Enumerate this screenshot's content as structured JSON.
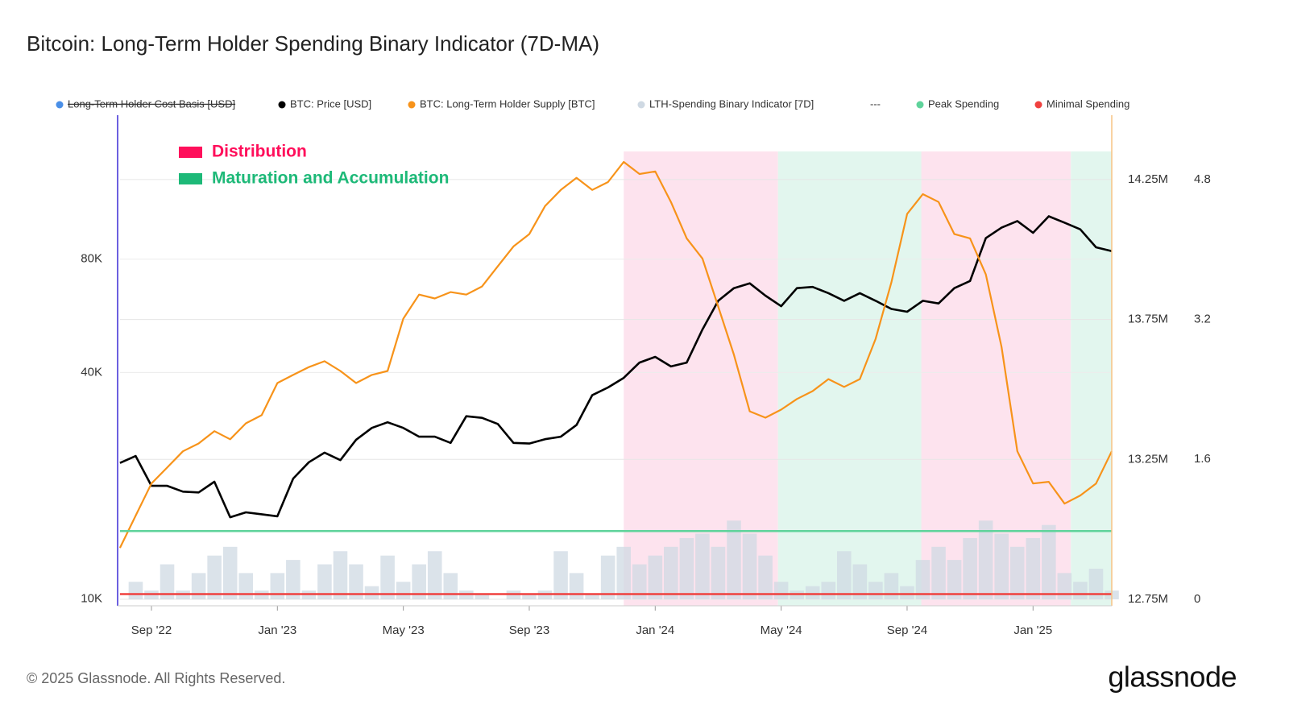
{
  "chart_data": {
    "type": "line",
    "title": "Bitcoin: Long-Term Holder Spending Binary Indicator (7D-MA)",
    "x": [
      0,
      0.5,
      1,
      1.5,
      2,
      2.5,
      3,
      3.5,
      4,
      4.5,
      5,
      5.5,
      6,
      6.5,
      7,
      7.5,
      8,
      8.5,
      9,
      9.5,
      10,
      10.5,
      11,
      11.5,
      12,
      12.5,
      13,
      13.5,
      14,
      14.5,
      15,
      15.5,
      16,
      16.5,
      17,
      17.5,
      18,
      18.5,
      19,
      19.5,
      20,
      20.5,
      21,
      21.5,
      22,
      22.5,
      23,
      23.5,
      24,
      24.5,
      25,
      25.5,
      26,
      26.5,
      27,
      27.5,
      28,
      28.5,
      29,
      29.5,
      30,
      30.5,
      31,
      31.5
    ],
    "xlim": [
      0,
      31.5
    ],
    "xticks": [
      {
        "value": 1,
        "label": "Sep '22"
      },
      {
        "value": 5,
        "label": "Jan '23"
      },
      {
        "value": 9,
        "label": "May '23"
      },
      {
        "value": 13,
        "label": "Sep '23"
      },
      {
        "value": 17,
        "label": "Jan '24"
      },
      {
        "value": 21,
        "label": "May '24"
      },
      {
        "value": 25,
        "label": "Sep '24"
      },
      {
        "value": 29,
        "label": "Jan '25"
      }
    ],
    "log_y": true,
    "ylim": [
      9600,
      193000
    ],
    "yticks": [
      {
        "value": 10000,
        "label": "10K"
      },
      {
        "value": 40000,
        "label": "40K"
      },
      {
        "value": 80000,
        "label": "80K"
      }
    ],
    "y2lim": [
      12727000,
      14480000
    ],
    "y2ticks": [
      {
        "value": 12750000,
        "label": "12.75M"
      },
      {
        "value": 13250000,
        "label": "13.25M"
      },
      {
        "value": 13750000,
        "label": "13.75M"
      },
      {
        "value": 14250000,
        "label": "14.25M"
      }
    ],
    "y3lim": [
      -0.074,
      5.536
    ],
    "y3ticks": [
      0,
      1.6,
      3.2,
      4.8
    ],
    "series": [
      {
        "name": "Long-Term Holder Cost Basis [USD]",
        "color": "#4a8fe7",
        "hidden": true
      },
      {
        "name": "BTC: Price [USD]",
        "color": "#000000",
        "axis": "y",
        "values": [
          23000,
          24000,
          20000,
          20000,
          19300,
          19200,
          20500,
          16500,
          17000,
          16800,
          16600,
          20900,
          23100,
          24500,
          23400,
          26500,
          28500,
          29500,
          28500,
          27000,
          27000,
          26000,
          30600,
          30300,
          29200,
          26000,
          25900,
          26600,
          27000,
          29000,
          34800,
          36500,
          38700,
          42500,
          44000,
          41500,
          42500,
          52000,
          62000,
          67000,
          69000,
          64000,
          60000,
          67000,
          67500,
          65000,
          62000,
          65000,
          62000,
          59000,
          58000,
          62000,
          61000,
          67000,
          70000,
          91000,
          97000,
          101000,
          94000,
          104000,
          100000,
          96000,
          86000,
          84000
        ]
      },
      {
        "name": "BTC: Long-Term Holder Supply [BTC]",
        "color": "#f7931a",
        "axis": "y2",
        "values": [
          12934000,
          13049000,
          13164000,
          13221000,
          13279000,
          13307000,
          13351000,
          13322000,
          13379000,
          13408000,
          13523000,
          13552000,
          13580000,
          13601000,
          13566000,
          13523000,
          13552000,
          13566000,
          13753000,
          13839000,
          13825000,
          13848000,
          13839000,
          13868000,
          13940000,
          14011000,
          14055000,
          14155000,
          14213000,
          14256000,
          14213000,
          14241000,
          14313000,
          14270000,
          14279000,
          14170000,
          14040000,
          13968000,
          13796000,
          13624000,
          13422000,
          13399000,
          13428000,
          13466000,
          13494000,
          13537000,
          13509000,
          13537000,
          13681000,
          13882000,
          14127000,
          14198000,
          14170000,
          14055000,
          14040000,
          13911000,
          13652000,
          13279000,
          13164000,
          13170000,
          13092000,
          13121000,
          13164000,
          13279000
        ]
      },
      {
        "name": "LTH-Spending Binary Indicator [7D]",
        "color": "#cfd9e3",
        "axis": "y3",
        "values": [
          0,
          0.2,
          0.1,
          0.4,
          0.1,
          0.3,
          0.5,
          0.6,
          0.3,
          0.1,
          0.3,
          0.45,
          0.1,
          0.4,
          0.55,
          0.4,
          0.15,
          0.5,
          0.2,
          0.4,
          0.55,
          0.3,
          0.1,
          0.05,
          0,
          0.1,
          0.05,
          0.1,
          0.55,
          0.3,
          0.05,
          0.5,
          0.6,
          0.4,
          0.5,
          0.6,
          0.7,
          0.75,
          0.6,
          0.9,
          0.75,
          0.5,
          0.2,
          0.1,
          0.15,
          0.2,
          0.55,
          0.4,
          0.2,
          0.3,
          0.15,
          0.45,
          0.6,
          0.45,
          0.7,
          0.9,
          0.75,
          0.6,
          0.7,
          0.85,
          0.3,
          0.2,
          0.35,
          0.1
        ]
      },
      {
        "name": "---"
      },
      {
        "name": "Peak Spending",
        "color": "#5fd39b",
        "axis": "y3",
        "level": 0.78
      },
      {
        "name": "Minimal Spending",
        "color": "#f0413f",
        "axis": "y3",
        "level": 0.06
      }
    ],
    "zones": [
      {
        "label": "Distribution",
        "color": "#ff0f5b",
        "fill": "#fde3ee",
        "spans": [
          [
            16,
            20.9
          ],
          [
            25.45,
            30.2
          ]
        ]
      },
      {
        "label": "Maturation and Accumulation",
        "color": "#1db978",
        "fill": "#e2f6ee",
        "spans": [
          [
            20.9,
            25.45
          ],
          [
            30.2,
            31.5
          ]
        ]
      }
    ],
    "copyright": "© 2025 Glassnode. All Rights Reserved.",
    "logo": "glassnode"
  }
}
